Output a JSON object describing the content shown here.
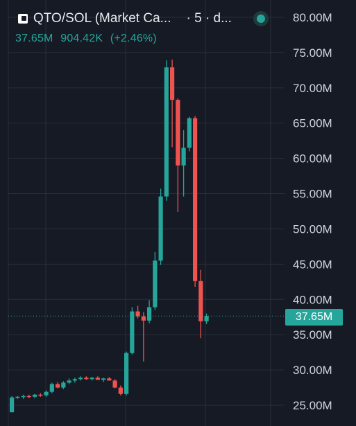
{
  "header": {
    "title": "QTO/SOL (Market Ca...",
    "interval": "· 5 · d..."
  },
  "stats": {
    "last": "37.65M",
    "change_abs": "904.42K",
    "change_pct": "(+2.46%)"
  },
  "price_tag": "37.65M",
  "colors": {
    "background": "#161a25",
    "up": "#26a69a",
    "down": "#ef5350",
    "grid": "#2a2e39",
    "axis_text": "#d1d4dc"
  },
  "chart_data": {
    "type": "candlestick",
    "y_unit": "M",
    "ylim": [
      22.0,
      81.5
    ],
    "y_ticks": [
      {
        "value": 80,
        "label": "80.00M"
      },
      {
        "value": 75,
        "label": "75.00M"
      },
      {
        "value": 70,
        "label": "70.00M"
      },
      {
        "value": 65,
        "label": "65.00M"
      },
      {
        "value": 60,
        "label": "60.00M"
      },
      {
        "value": 55,
        "label": "55.00M"
      },
      {
        "value": 50,
        "label": "50.00M"
      },
      {
        "value": 45,
        "label": "45.00M"
      },
      {
        "value": 40,
        "label": "40.00M"
      },
      {
        "value": 35,
        "label": "35.00M"
      },
      {
        "value": 30,
        "label": "30.00M"
      },
      {
        "value": 25,
        "label": "25.00M"
      }
    ],
    "current_price": 37.65,
    "candles": [
      {
        "o": 24.0,
        "h": 26.3,
        "l": 24.0,
        "c": 26.1
      },
      {
        "o": 26.1,
        "h": 26.3,
        "l": 25.9,
        "c": 26.2
      },
      {
        "o": 26.2,
        "h": 26.5,
        "l": 25.9,
        "c": 26.3
      },
      {
        "o": 26.3,
        "h": 26.5,
        "l": 26.0,
        "c": 26.2
      },
      {
        "o": 26.2,
        "h": 26.6,
        "l": 26.0,
        "c": 26.5
      },
      {
        "o": 26.5,
        "h": 26.7,
        "l": 26.2,
        "c": 26.4
      },
      {
        "o": 26.4,
        "h": 27.1,
        "l": 26.2,
        "c": 26.9
      },
      {
        "o": 26.9,
        "h": 28.2,
        "l": 26.7,
        "c": 28.0
      },
      {
        "o": 28.0,
        "h": 28.3,
        "l": 27.4,
        "c": 27.5
      },
      {
        "o": 27.5,
        "h": 28.4,
        "l": 27.3,
        "c": 28.2
      },
      {
        "o": 28.2,
        "h": 28.8,
        "l": 28.0,
        "c": 28.5
      },
      {
        "o": 28.5,
        "h": 28.9,
        "l": 28.2,
        "c": 28.7
      },
      {
        "o": 28.7,
        "h": 29.1,
        "l": 28.5,
        "c": 28.9
      },
      {
        "o": 28.9,
        "h": 29.1,
        "l": 28.6,
        "c": 28.7
      },
      {
        "o": 28.7,
        "h": 29.0,
        "l": 28.5,
        "c": 28.9
      },
      {
        "o": 28.9,
        "h": 29.1,
        "l": 28.6,
        "c": 28.6
      },
      {
        "o": 28.6,
        "h": 28.9,
        "l": 28.3,
        "c": 28.8
      },
      {
        "o": 28.8,
        "h": 29.0,
        "l": 28.5,
        "c": 28.5
      },
      {
        "o": 28.5,
        "h": 28.7,
        "l": 27.4,
        "c": 27.5
      },
      {
        "o": 27.5,
        "h": 27.8,
        "l": 26.4,
        "c": 26.6
      },
      {
        "o": 26.6,
        "h": 32.6,
        "l": 26.4,
        "c": 32.4
      },
      {
        "o": 32.4,
        "h": 38.9,
        "l": 32.2,
        "c": 38.3
      },
      {
        "o": 38.3,
        "h": 39.1,
        "l": 37.3,
        "c": 37.6
      },
      {
        "o": 37.6,
        "h": 38.2,
        "l": 31.2,
        "c": 37.0
      },
      {
        "o": 37.0,
        "h": 39.9,
        "l": 36.6,
        "c": 38.9
      },
      {
        "o": 38.9,
        "h": 46.7,
        "l": 38.5,
        "c": 45.5
      },
      {
        "o": 45.5,
        "h": 55.7,
        "l": 44.9,
        "c": 54.6
      },
      {
        "o": 54.6,
        "h": 73.9,
        "l": 54.0,
        "c": 72.9
      },
      {
        "o": 72.9,
        "h": 74.0,
        "l": 61.6,
        "c": 68.3
      },
      {
        "o": 68.3,
        "h": 68.5,
        "l": 52.4,
        "c": 59.0
      },
      {
        "o": 59.0,
        "h": 64.0,
        "l": 54.6,
        "c": 61.5
      },
      {
        "o": 61.5,
        "h": 65.9,
        "l": 61.0,
        "c": 65.7
      },
      {
        "o": 65.7,
        "h": 66.0,
        "l": 41.8,
        "c": 42.6
      },
      {
        "o": 42.6,
        "h": 44.2,
        "l": 34.5,
        "c": 36.9
      },
      {
        "o": 36.9,
        "h": 38.0,
        "l": 36.5,
        "c": 37.65
      }
    ]
  }
}
